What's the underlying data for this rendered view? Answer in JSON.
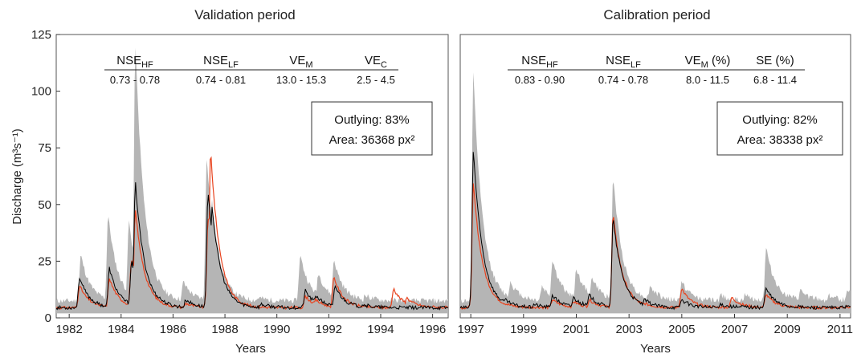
{
  "chart_data": [
    {
      "type": "line",
      "title": "Validation period",
      "xlabel": "Years",
      "ylabel": "Discharge (m³s⁻¹)",
      "ylim": [
        0,
        125
      ],
      "xlim": [
        1981.5,
        1996.6
      ],
      "yticks": [
        "0",
        "25",
        "50",
        "75",
        "100",
        "125"
      ],
      "xticks": [
        "1982",
        "1984",
        "1986",
        "1988",
        "1990",
        "1992",
        "1994",
        "1996"
      ],
      "metrics": [
        {
          "name": "NSE",
          "sub": "HF",
          "suffix": "",
          "value": "0.73 - 0.78"
        },
        {
          "name": "NSE",
          "sub": "LF",
          "suffix": "",
          "value": "0.74 - 0.81"
        },
        {
          "name": "VE",
          "sub": "M",
          "suffix": "",
          "value": "13.0 - 15.3"
        },
        {
          "name": "VE",
          "sub": "C",
          "suffix": "",
          "value": "2.5 - 4.5"
        }
      ],
      "box": {
        "line1": "Outlying: 83%",
        "line2": "Area: 36368 px²"
      },
      "base_flow": 4.5,
      "series": [
        {
          "role": "simulated",
          "color": "#000000",
          "peaks": [
            [
              1982.4,
              18
            ],
            [
              1983.55,
              22
            ],
            [
              1984.4,
              25
            ],
            [
              1984.55,
              60
            ],
            [
              1985.4,
              10
            ],
            [
              1986.5,
              8
            ],
            [
              1987.35,
              55
            ],
            [
              1987.5,
              50
            ],
            [
              1989.4,
              6
            ],
            [
              1991.1,
              12
            ],
            [
              1991.5,
              10
            ],
            [
              1992.25,
              14
            ],
            [
              1993.3,
              6
            ],
            [
              1994.5,
              4.5
            ],
            [
              1995.6,
              3
            ]
          ]
        },
        {
          "role": "observed_outlying",
          "color": "#e8431e",
          "peaks": [
            [
              1984.4,
              26
            ],
            [
              1987.45,
              74
            ],
            [
              1992.2,
              18
            ],
            [
              1994.5,
              13
            ],
            [
              1995.0,
              9
            ],
            [
              1995.9,
              5
            ]
          ]
        },
        {
          "role": "uncertainty_band",
          "color": "#b5b5b5",
          "peaks": [
            [
              1982.45,
              28
            ],
            [
              1983.5,
              46
            ],
            [
              1984.3,
              43
            ],
            [
              1984.55,
              122
            ],
            [
              1985.3,
              20
            ],
            [
              1986.4,
              16
            ],
            [
              1987.3,
              72
            ],
            [
              1987.5,
              52
            ],
            [
              1989.3,
              9
            ],
            [
              1990.9,
              28
            ],
            [
              1991.6,
              20
            ],
            [
              1992.2,
              26
            ],
            [
              1993.4,
              10
            ],
            [
              1994.4,
              8
            ],
            [
              1995.5,
              6
            ]
          ]
        }
      ]
    },
    {
      "type": "line",
      "title": "Calibration period",
      "xlabel": "Years",
      "ylabel": "",
      "ylim": [
        0,
        125
      ],
      "xlim": [
        1996.6,
        2011.4
      ],
      "yticks": [],
      "xticks": [
        "1997",
        "1999",
        "2001",
        "2003",
        "2005",
        "2007",
        "2009",
        "2011"
      ],
      "metrics": [
        {
          "name": "NSE",
          "sub": "HF",
          "suffix": "",
          "value": "0.83 - 0.90"
        },
        {
          "name": "NSE",
          "sub": "LF",
          "suffix": "",
          "value": "0.74 - 0.78"
        },
        {
          "name": "VE",
          "sub": "M",
          "suffix": " (%)",
          "value": "8.0 - 11.5"
        },
        {
          "name": "SE (%)",
          "sub": "",
          "suffix": "",
          "value": "6.8 - 11.4"
        }
      ],
      "box": {
        "line1": "Outlying: 82%",
        "line2": "Area: 38338 px²"
      },
      "base_flow": 4.5,
      "series": [
        {
          "role": "simulated",
          "color": "#000000",
          "peaks": [
            [
              1997.1,
              74
            ],
            [
              1997.5,
              20
            ],
            [
              1998.3,
              8
            ],
            [
              1999.4,
              6
            ],
            [
              2000.1,
              10
            ],
            [
              2000.9,
              9
            ],
            [
              2001.5,
              10
            ],
            [
              2002.4,
              44
            ],
            [
              2002.7,
              12
            ],
            [
              2003.6,
              8
            ],
            [
              2005.0,
              8
            ],
            [
              2006.5,
              6
            ],
            [
              2007.3,
              5
            ],
            [
              2008.2,
              13
            ],
            [
              2009.3,
              5
            ],
            [
              2010.5,
              4
            ],
            [
              2011.2,
              5
            ]
          ]
        },
        {
          "role": "observed_outlying",
          "color": "#e8431e",
          "peaks": [
            [
              2002.4,
              46
            ],
            [
              2005.0,
              13
            ],
            [
              2006.9,
              9
            ],
            [
              2011.0,
              5
            ]
          ]
        },
        {
          "role": "uncertainty_band",
          "color": "#b5b5b5",
          "peaks": [
            [
              1997.1,
              108
            ],
            [
              1997.6,
              30
            ],
            [
              1998.5,
              16
            ],
            [
              1999.7,
              14
            ],
            [
              2000.1,
              26
            ],
            [
              2001.0,
              22
            ],
            [
              2001.6,
              18
            ],
            [
              2002.4,
              63
            ],
            [
              2002.8,
              20
            ],
            [
              2003.8,
              14
            ],
            [
              2005.0,
              16
            ],
            [
              2006.5,
              10
            ],
            [
              2007.4,
              10
            ],
            [
              2008.2,
              31
            ],
            [
              2009.5,
              12
            ],
            [
              2010.6,
              10
            ],
            [
              2011.3,
              13
            ]
          ]
        }
      ]
    }
  ]
}
